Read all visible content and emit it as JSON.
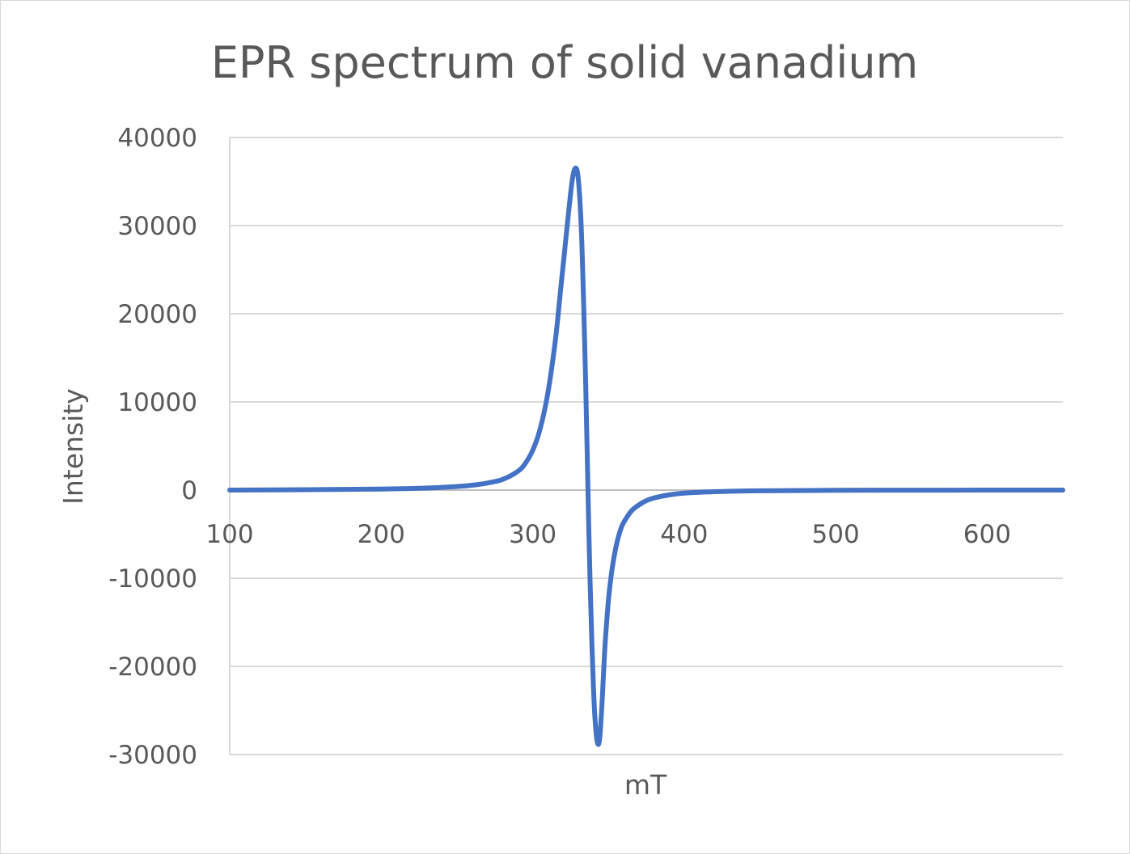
{
  "chart_data": {
    "type": "scatter",
    "title": "EPR spectrum of solid vanadium",
    "xlabel": "mT",
    "ylabel": "Intensity",
    "xlim": [
      100,
      650
    ],
    "ylim": [
      -30000,
      40000
    ],
    "x_ticks": [
      "100",
      "200",
      "300",
      "400",
      "500",
      "600"
    ],
    "y_ticks": [
      "40000",
      "30000",
      "20000",
      "10000",
      "0",
      "-10000",
      "-20000",
      "-30000"
    ],
    "grid": true,
    "legend": "none",
    "series_color": "#4472C4",
    "gridline_color": "#d9d9d9",
    "series": [
      {
        "x": [
          100,
          150,
          200,
          225,
          250,
          260,
          270,
          280,
          290,
          295,
          300,
          305,
          310,
          315,
          318,
          321,
          324,
          326,
          328,
          330,
          332,
          333.5,
          335,
          336,
          337,
          338,
          339,
          340,
          341,
          342,
          343,
          344,
          345,
          346,
          347,
          348,
          350,
          352,
          354,
          356,
          358,
          360,
          365,
          370,
          375,
          380,
          390,
          400,
          420,
          450,
          500,
          550,
          600,
          650
        ],
        "y": [
          0,
          50,
          120,
          200,
          400,
          550,
          800,
          1200,
          2100,
          3000,
          4500,
          7000,
          11000,
          17000,
          22000,
          27000,
          32000,
          35000,
          36500,
          35500,
          30000,
          22000,
          12000,
          4000,
          -4000,
          -11000,
          -17000,
          -22000,
          -25500,
          -27800,
          -28800,
          -28500,
          -26500,
          -23500,
          -20000,
          -17000,
          -12500,
          -9500,
          -7300,
          -5700,
          -4500,
          -3700,
          -2400,
          -1700,
          -1200,
          -900,
          -550,
          -350,
          -180,
          -80,
          -30,
          -10,
          -3,
          0
        ]
      }
    ]
  }
}
